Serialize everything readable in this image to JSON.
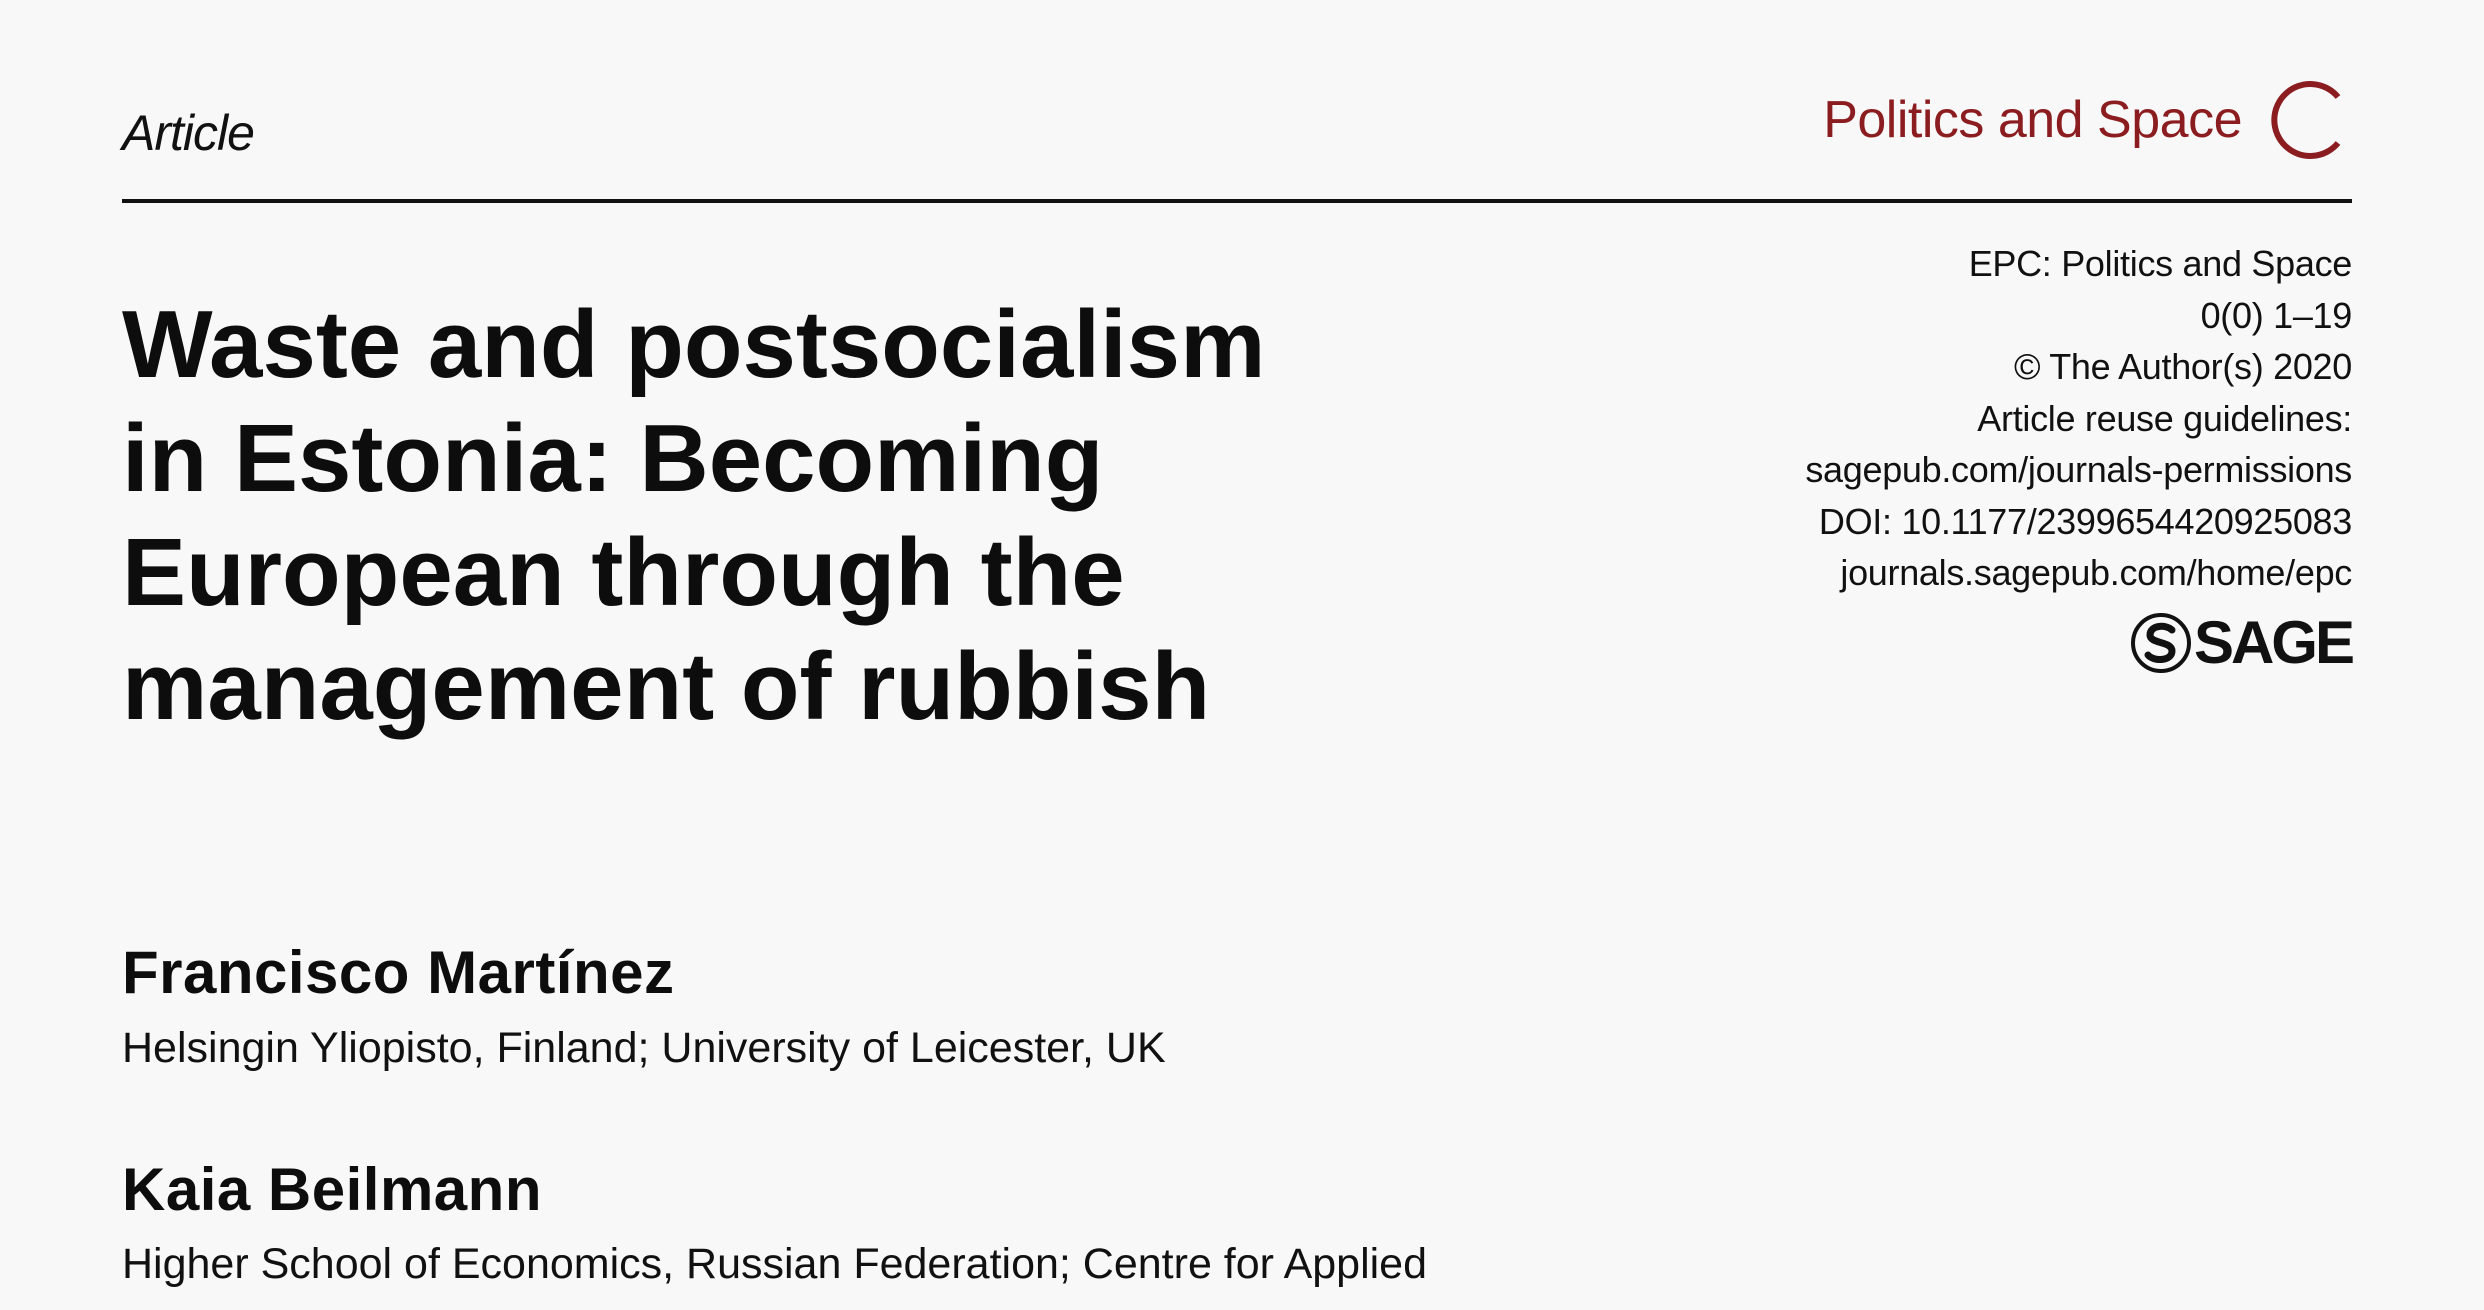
{
  "header": {
    "article_type": "Article",
    "journal_name": "Politics and Space",
    "journal_letter": "C"
  },
  "colors": {
    "journal_accent": "#8b1c1f",
    "text": "#111111",
    "background": "#f8f8f8"
  },
  "meta": {
    "lines": [
      "EPC: Politics and Space",
      "0(0) 1–19",
      "© The Author(s) 2020",
      "Article reuse guidelines:",
      "sagepub.com/journals-permissions",
      "DOI: 10.1177/2399654420925083",
      "journals.sagepub.com/home/epc"
    ],
    "publisher_logo": "SAGE",
    "publisher_icon": "sage-s-icon"
  },
  "title": {
    "lines": [
      "Waste and postsocialism",
      "in Estonia: Becoming",
      "European through the",
      "management of rubbish"
    ]
  },
  "authors": [
    {
      "name": "Francisco Martínez",
      "affiliation": "Helsingin Yliopisto, Finland; University of Leicester, UK"
    },
    {
      "name": "Kaia Beilmann",
      "affiliation": "Higher School of Economics, Russian Federation; Centre for Applied"
    }
  ]
}
